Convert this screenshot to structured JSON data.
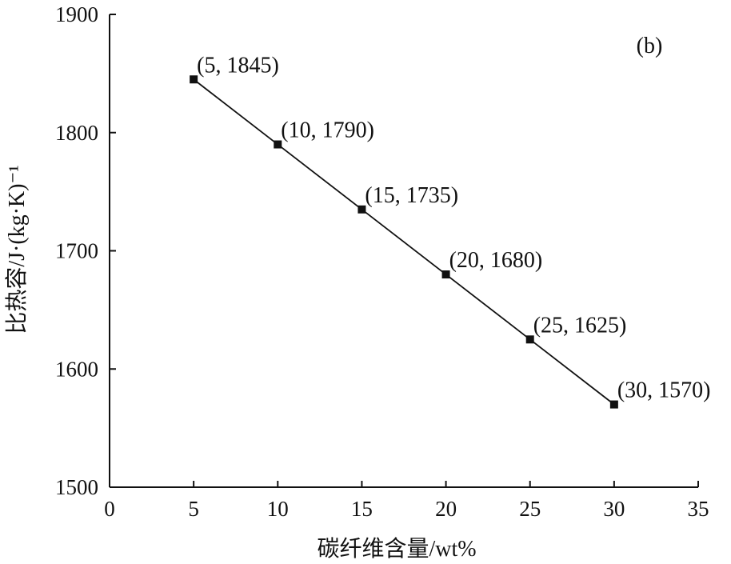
{
  "chart_data": {
    "type": "line",
    "panel_label": "(b)",
    "xlabel": "碳纤维含量/wt%",
    "ylabel": "比热容/J·(kg·K)⁻¹",
    "xlim": [
      0,
      35
    ],
    "ylim": [
      1500,
      1900
    ],
    "x_ticks": [
      0,
      5,
      10,
      15,
      20,
      25,
      30,
      35
    ],
    "y_ticks": [
      1500,
      1600,
      1700,
      1800,
      1900
    ],
    "grid": false,
    "legend": "none",
    "series": [
      {
        "marker": "square",
        "color": "#111111",
        "points": [
          {
            "x": 5,
            "y": 1845,
            "label": "(5, 1845)"
          },
          {
            "x": 10,
            "y": 1790,
            "label": "(10, 1790)"
          },
          {
            "x": 15,
            "y": 1735,
            "label": "(15, 1735)"
          },
          {
            "x": 20,
            "y": 1680,
            "label": "(20, 1680)"
          },
          {
            "x": 25,
            "y": 1625,
            "label": "(25, 1625)"
          },
          {
            "x": 30,
            "y": 1570,
            "label": "(30, 1570)"
          }
        ]
      }
    ]
  }
}
